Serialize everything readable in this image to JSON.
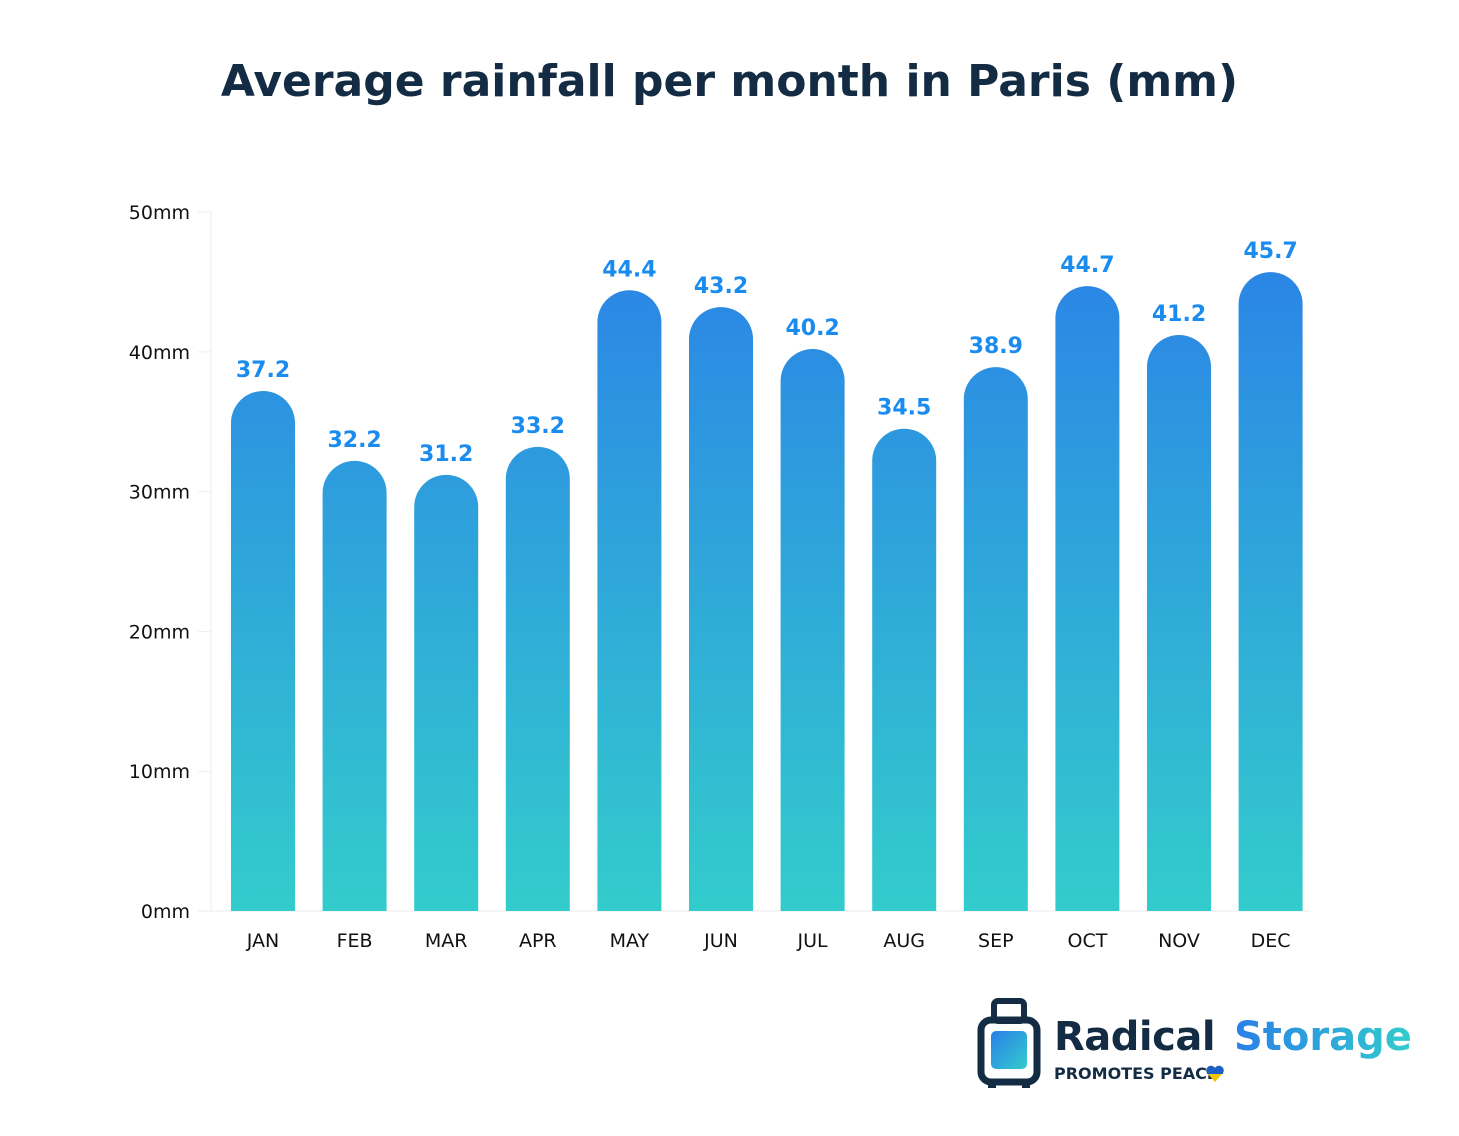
{
  "chart_data": {
    "type": "bar",
    "title": "Average rainfall per month in Paris (mm)",
    "categories": [
      "JAN",
      "FEB",
      "MAR",
      "APR",
      "MAY",
      "JUN",
      "JUL",
      "AUG",
      "SEP",
      "OCT",
      "NOV",
      "DEC"
    ],
    "values": [
      37.2,
      32.2,
      31.2,
      33.2,
      44.4,
      43.2,
      40.2,
      34.5,
      38.9,
      44.7,
      41.2,
      45.7
    ],
    "data_labels": [
      "37.2",
      "32.2",
      "31.2",
      "33.2",
      "44.4",
      "43.2",
      "40.2",
      "34.5",
      "38.9",
      "44.7",
      "41.2",
      "45.7"
    ],
    "ylim": [
      0,
      50
    ],
    "yticks": [
      0,
      10,
      20,
      30,
      40,
      50
    ],
    "ytick_labels": [
      "0mm",
      "10mm",
      "20mm",
      "30mm",
      "40mm",
      "50mm"
    ],
    "xlabel": "",
    "ylabel": "",
    "grid": false,
    "colors": {
      "bar_top": "#2a7fe8",
      "bar_bottom": "#33cccc",
      "label": "#1a8cf0",
      "title": "#132c44"
    }
  },
  "logo": {
    "name_part1": "Radical",
    "name_part2": "Storage",
    "tagline": "PROMOTES PEACE"
  }
}
